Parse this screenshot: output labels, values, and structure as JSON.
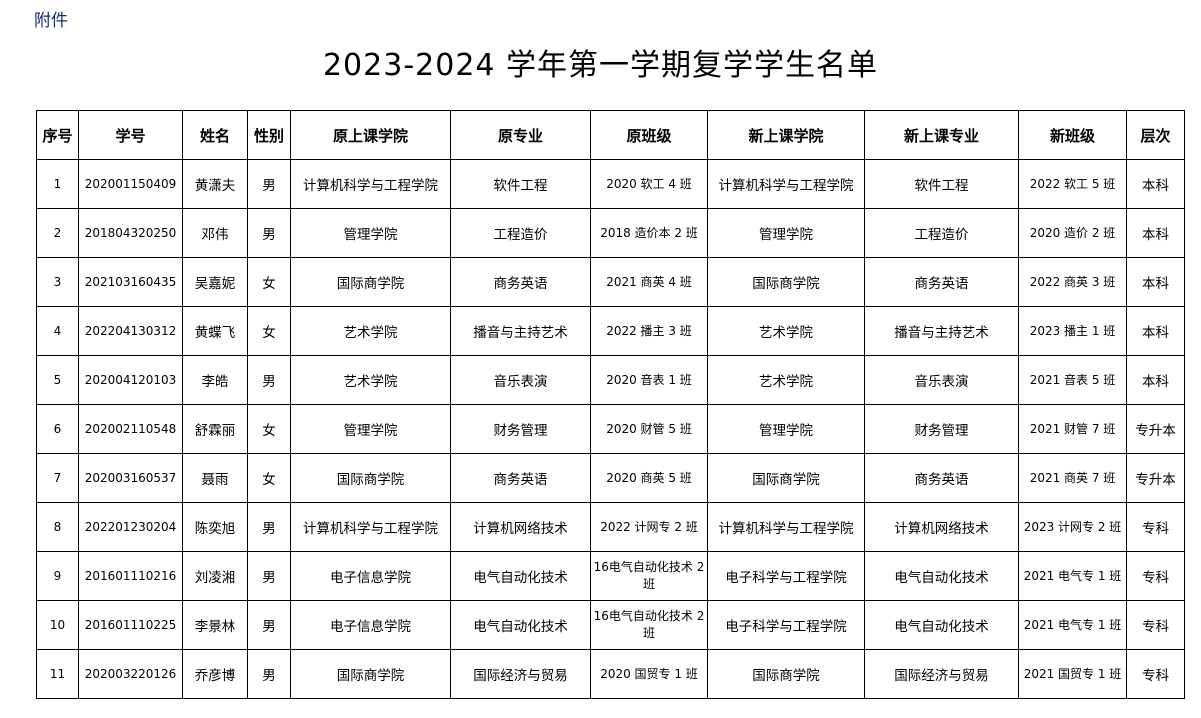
{
  "attachment_label": "附件",
  "title": "2023-2024 学年第一学期复学学生名单",
  "table": {
    "headers": [
      "序号",
      "学号",
      "姓名",
      "性别",
      "原上课学院",
      "原专业",
      "原班级",
      "新上课学院",
      "新上课专业",
      "新班级",
      "层次"
    ],
    "rows": [
      [
        "1",
        "202001150409",
        "黄潇夫",
        "男",
        "计算机科学与工程学院",
        "软件工程",
        "2020 软工 4 班",
        "计算机科学与工程学院",
        "软件工程",
        "2022 软工 5 班",
        "本科"
      ],
      [
        "2",
        "201804320250",
        "邓伟",
        "男",
        "管理学院",
        "工程造价",
        "2018 造价本 2 班",
        "管理学院",
        "工程造价",
        "2020 造价 2 班",
        "本科"
      ],
      [
        "3",
        "202103160435",
        "吴嘉妮",
        "女",
        "国际商学院",
        "商务英语",
        "2021 商英 4 班",
        "国际商学院",
        "商务英语",
        "2022 商英 3 班",
        "本科"
      ],
      [
        "4",
        "202204130312",
        "黄蝶飞",
        "女",
        "艺术学院",
        "播音与主持艺术",
        "2022 播主 3 班",
        "艺术学院",
        "播音与主持艺术",
        "2023 播主 1 班",
        "本科"
      ],
      [
        "5",
        "202004120103",
        "李皓",
        "男",
        "艺术学院",
        "音乐表演",
        "2020 音表 1 班",
        "艺术学院",
        "音乐表演",
        "2021 音表 5 班",
        "本科"
      ],
      [
        "6",
        "202002110548",
        "舒霖丽",
        "女",
        "管理学院",
        "财务管理",
        "2020 财管 5 班",
        "管理学院",
        "财务管理",
        "2021 财管 7 班",
        "专升本"
      ],
      [
        "7",
        "202003160537",
        "聂雨",
        "女",
        "国际商学院",
        "商务英语",
        "2020 商英 5 班",
        "国际商学院",
        "商务英语",
        "2021 商英 7 班",
        "专升本"
      ],
      [
        "8",
        "202201230204",
        "陈奕旭",
        "男",
        "计算机科学与工程学院",
        "计算机网络技术",
        "2022 计网专 2 班",
        "计算机科学与工程学院",
        "计算机网络技术",
        "2023 计网专 2 班",
        "专科"
      ],
      [
        "9",
        "201601110216",
        "刘凌湘",
        "男",
        "电子信息学院",
        "电气自动化技术",
        "16电气自动化技术 2 班",
        "电子科学与工程学院",
        "电气自动化技术",
        "2021 电气专 1 班",
        "专科"
      ],
      [
        "10",
        "201601110225",
        "李景林",
        "男",
        "电子信息学院",
        "电气自动化技术",
        "16电气自动化技术 2 班",
        "电子科学与工程学院",
        "电气自动化技术",
        "2021 电气专 1 班",
        "专科"
      ],
      [
        "11",
        "202003220126",
        "乔彦博",
        "男",
        "国际商学院",
        "国际经济与贸易",
        "2020 国贸专 1 班",
        "国际商学院",
        "国际经济与贸易",
        "2021 国贸专 1 班",
        "专科"
      ]
    ]
  }
}
